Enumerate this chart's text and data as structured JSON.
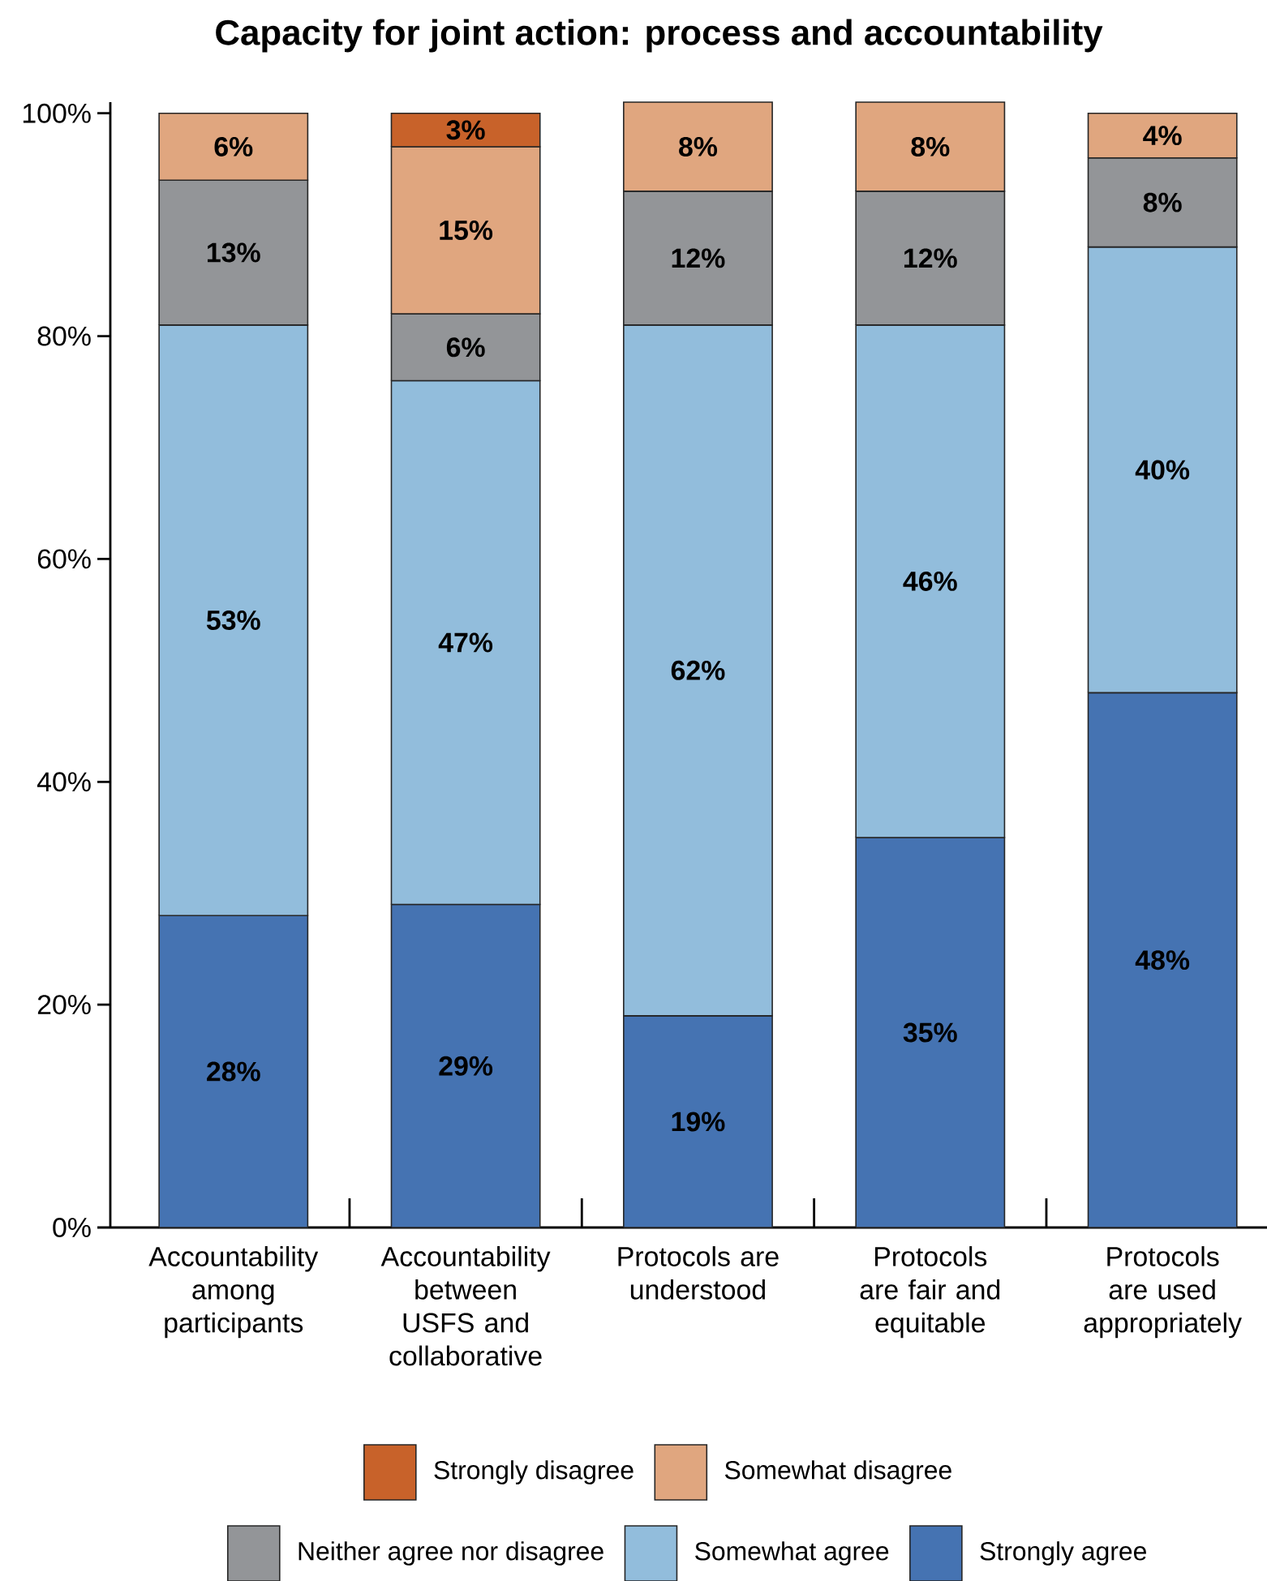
{
  "chart_data": {
    "type": "bar",
    "title": "Capacity for joint action: process and accountability",
    "categories": [
      "Accountability among participants",
      "Accountability between USFS and collaborative",
      "Protocols are understood",
      "Protocols are fair and equitable",
      "Protocols are used appropriately"
    ],
    "stacked": true,
    "ylim": [
      0,
      101
    ],
    "yticks": [
      {
        "value": 0,
        "label": "0%"
      },
      {
        "value": 20,
        "label": "20%"
      },
      {
        "value": 40,
        "label": "40%"
      },
      {
        "value": 60,
        "label": "60%"
      },
      {
        "value": 80,
        "label": "80%"
      },
      {
        "value": 100,
        "label": "100%"
      }
    ],
    "legend": "bottom",
    "series": [
      {
        "name": "Strongly agree",
        "color": "#4573b2",
        "values": [
          28,
          29,
          19,
          35,
          48
        ],
        "value_labels": [
          "28%",
          "29%",
          "19%",
          "35%",
          "48%"
        ]
      },
      {
        "name": "Somewhat agree",
        "color": "#92bddc",
        "values": [
          53,
          47,
          62,
          46,
          40
        ],
        "value_labels": [
          "53%",
          "47%",
          "62%",
          "46%",
          "40%"
        ]
      },
      {
        "name": "Neither agree nor disagree",
        "color": "#939598",
        "values": [
          13,
          6,
          12,
          12,
          8
        ],
        "value_labels": [
          "13%",
          "6%",
          "12%",
          "12%",
          "8%"
        ]
      },
      {
        "name": "Somewhat disagree",
        "color": "#e0a67f",
        "values": [
          6,
          15,
          8,
          8,
          4
        ],
        "value_labels": [
          "6%",
          "15%",
          "8%",
          "8%",
          "4%"
        ]
      },
      {
        "name": "Strongly disagree",
        "color": "#c8622a",
        "values": [
          null,
          3,
          null,
          null,
          null
        ],
        "value_labels": [
          null,
          "3%",
          null,
          null,
          null
        ]
      }
    ]
  }
}
